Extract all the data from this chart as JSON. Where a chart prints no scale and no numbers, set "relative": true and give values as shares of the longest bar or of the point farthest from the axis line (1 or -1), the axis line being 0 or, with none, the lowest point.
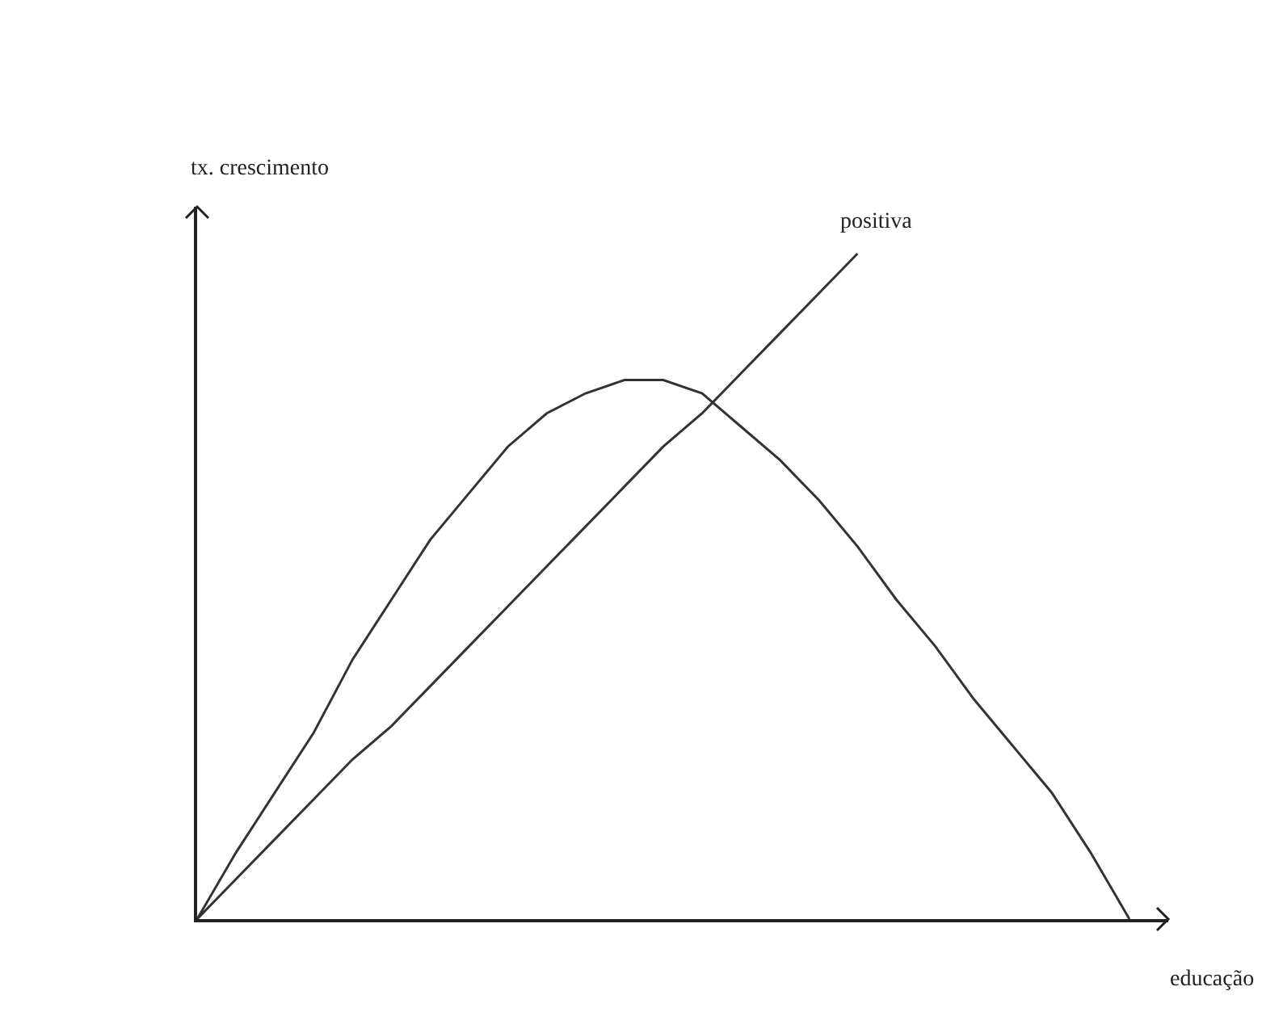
{
  "chart_data": {
    "type": "line",
    "xlabel": "educação",
    "ylabel": "tx. crescimento",
    "relative": true,
    "legend": false,
    "marker": "none",
    "line_style": "solid",
    "categories": [
      null,
      null,
      null,
      null,
      null,
      null,
      null,
      null,
      null,
      null,
      null,
      null,
      null,
      null,
      null,
      null,
      null,
      null,
      null,
      null,
      null,
      null,
      null,
      null,
      null,
      null
    ],
    "series": [
      {
        "color": "#333333",
        "values": [
          0,
          0.1,
          0.19,
          0.28,
          0.39,
          0.48,
          0.57,
          0.64,
          0.71,
          0.76,
          0.79,
          0.81,
          0.81,
          0.79,
          0.74,
          0.69,
          0.63,
          0.56,
          0.48,
          0.41,
          0.33,
          0.26,
          0.19,
          0.1,
          0,
          null
        ]
      },
      {
        "name": "positiva",
        "color": "#333333",
        "values": [
          0,
          0.06,
          0.12,
          0.18,
          0.24,
          0.29,
          0.35,
          0.41,
          0.47,
          0.53,
          0.59,
          0.65,
          0.71,
          0.76,
          0.82,
          0.88,
          0.94,
          1.0,
          null,
          null,
          null,
          null,
          null,
          null,
          null,
          null
        ]
      }
    ]
  }
}
